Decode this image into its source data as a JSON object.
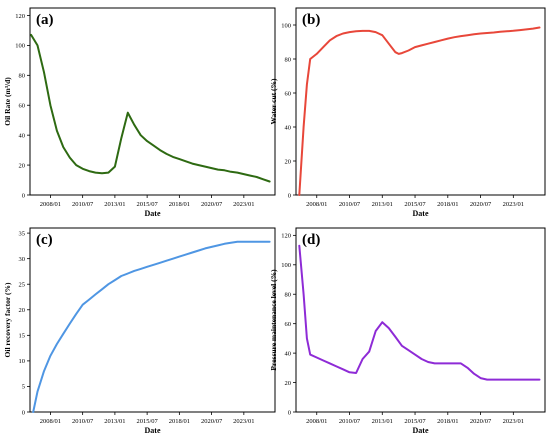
{
  "chart_data": [
    {
      "type": "line",
      "panel_label": "(a)",
      "xlabel": "Date",
      "ylabel": "Oil Rate (m³/d)",
      "xticks": [
        "2008/01",
        "2010/07",
        "2013/01",
        "2015/07",
        "2018/01",
        "2020/07",
        "2023/01"
      ],
      "yticks": [
        "0",
        "20",
        "40",
        "60",
        "80",
        "100",
        "120"
      ],
      "xlim": [
        "2006/06",
        "2025/06"
      ],
      "ylim": [
        0,
        125
      ],
      "color": "#2e6a12",
      "series": [
        {
          "x": [
            "2006/07",
            "2007/01",
            "2007/07",
            "2008/01",
            "2008/07",
            "2009/01",
            "2009/07",
            "2010/01",
            "2010/07",
            "2011/01",
            "2011/07",
            "2012/01",
            "2012/07",
            "2013/01",
            "2013/07",
            "2014/01",
            "2014/07",
            "2015/01",
            "2015/07",
            "2016/01",
            "2016/07",
            "2017/01",
            "2017/07",
            "2018/01",
            "2018/07",
            "2019/01",
            "2019/07",
            "2020/01",
            "2020/07",
            "2021/01",
            "2021/07",
            "2022/01",
            "2022/07",
            "2023/01",
            "2023/07",
            "2024/01",
            "2024/07",
            "2025/01"
          ],
          "values": [
            107,
            100,
            82,
            60,
            43,
            32,
            25,
            20,
            17.5,
            16,
            15,
            14.5,
            15,
            19,
            38,
            55,
            47,
            40,
            36,
            33,
            30,
            27.5,
            25.5,
            24,
            22.5,
            21,
            20,
            19,
            18,
            17,
            16.5,
            15.5,
            15,
            14,
            13,
            12,
            10.5,
            9
          ]
        }
      ]
    },
    {
      "type": "line",
      "panel_label": "(b)",
      "xlabel": "Date",
      "ylabel": "Water cut (%)",
      "xticks": [
        "2008/01",
        "2010/07",
        "2013/01",
        "2015/07",
        "2018/01",
        "2020/07",
        "2023/01"
      ],
      "yticks": [
        "0",
        "20",
        "40",
        "60",
        "80",
        "100"
      ],
      "xlim": [
        "2006/06",
        "2025/06"
      ],
      "ylim": [
        0,
        110
      ],
      "color": "#e8473a",
      "series": [
        {
          "x": [
            "2006/09",
            "2007/01",
            "2007/04",
            "2007/07",
            "2008/01",
            "2008/07",
            "2009/01",
            "2009/07",
            "2010/01",
            "2010/07",
            "2011/01",
            "2011/07",
            "2012/01",
            "2012/07",
            "2013/01",
            "2013/07",
            "2014/01",
            "2014/04",
            "2014/07",
            "2015/01",
            "2015/07",
            "2016/01",
            "2016/07",
            "2017/01",
            "2017/07",
            "2018/01",
            "2018/07",
            "2019/01",
            "2019/07",
            "2020/01",
            "2020/07",
            "2021/01",
            "2021/07",
            "2022/01",
            "2022/07",
            "2023/01",
            "2023/07",
            "2024/01",
            "2024/07",
            "2025/01"
          ],
          "values": [
            0,
            40,
            65,
            80,
            83,
            87,
            91,
            93.5,
            95,
            95.8,
            96.3,
            96.5,
            96.5,
            95.8,
            94,
            89,
            84,
            83,
            83.5,
            85,
            87,
            88,
            89,
            90,
            91,
            92,
            92.8,
            93.5,
            94,
            94.6,
            95,
            95.3,
            95.6,
            96,
            96.3,
            96.6,
            97,
            97.4,
            97.9,
            98.5
          ]
        }
      ]
    },
    {
      "type": "line",
      "panel_label": "(c)",
      "xlabel": "Date",
      "ylabel": "Oil recovery factor (%)",
      "xticks": [
        "2008/01",
        "2010/07",
        "2013/01",
        "2015/07",
        "2018/01",
        "2020/07",
        "2023/01"
      ],
      "yticks": [
        "0",
        "5",
        "10",
        "15",
        "20",
        "25",
        "30",
        "35"
      ],
      "xlim": [
        "2006/06",
        "2025/06"
      ],
      "ylim": [
        0,
        36
      ],
      "color": "#4f96e3",
      "series": [
        {
          "x": [
            "2006/09",
            "2007/01",
            "2007/07",
            "2008/01",
            "2008/07",
            "2009/01",
            "2009/07",
            "2010/01",
            "2010/07",
            "2011/01",
            "2011/07",
            "2012/01",
            "2012/07",
            "2013/01",
            "2013/07",
            "2014/01",
            "2014/07",
            "2015/01",
            "2015/07",
            "2016/01",
            "2016/07",
            "2017/01",
            "2017/07",
            "2018/01",
            "2018/07",
            "2019/01",
            "2019/07",
            "2020/01",
            "2020/07",
            "2021/01",
            "2021/07",
            "2022/01",
            "2022/07",
            "2023/01",
            "2023/07",
            "2024/01",
            "2024/07",
            "2025/01"
          ],
          "values": [
            0,
            4,
            8,
            11,
            13.3,
            15.3,
            17.3,
            19.2,
            21,
            22,
            23,
            24,
            25,
            25.8,
            26.6,
            27.1,
            27.6,
            28,
            28.4,
            28.8,
            29.2,
            29.6,
            30,
            30.4,
            30.8,
            31.2,
            31.6,
            32,
            32.3,
            32.6,
            32.9,
            33.1,
            33.3,
            33.3,
            33.3,
            33.3,
            33.3,
            33.3
          ]
        }
      ]
    },
    {
      "type": "line",
      "panel_label": "(d)",
      "xlabel": "Date",
      "ylabel": "Pressure maintenance level (%)",
      "xticks": [
        "2008/01",
        "2010/07",
        "2013/01",
        "2015/07",
        "2018/01",
        "2020/07",
        "2023/01"
      ],
      "yticks": [
        "0",
        "20",
        "40",
        "60",
        "80",
        "100",
        "120"
      ],
      "xlim": [
        "2006/06",
        "2025/06"
      ],
      "ylim": [
        0,
        125
      ],
      "color": "#8e2bd6",
      "series": [
        {
          "x": [
            "2006/09",
            "2007/01",
            "2007/04",
            "2007/07",
            "2008/01",
            "2008/07",
            "2009/01",
            "2009/07",
            "2010/01",
            "2010/07",
            "2011/01",
            "2011/07",
            "2012/01",
            "2012/07",
            "2013/01",
            "2013/07",
            "2014/01",
            "2014/07",
            "2015/01",
            "2015/07",
            "2016/01",
            "2016/07",
            "2017/01",
            "2017/07",
            "2018/01",
            "2018/07",
            "2019/01",
            "2019/07",
            "2020/01",
            "2020/07",
            "2021/01",
            "2021/07",
            "2022/01",
            "2022/07",
            "2023/01",
            "2023/07",
            "2024/01",
            "2024/07",
            "2025/01"
          ],
          "values": [
            113,
            80,
            50,
            39,
            37,
            35,
            33,
            31,
            29,
            27,
            26.5,
            36,
            41,
            55,
            61,
            57,
            51,
            45,
            42,
            39,
            36,
            34,
            33,
            33,
            33,
            33,
            33,
            30,
            26,
            23,
            22,
            22,
            22,
            22,
            22,
            22,
            22,
            22,
            22
          ]
        }
      ]
    }
  ]
}
